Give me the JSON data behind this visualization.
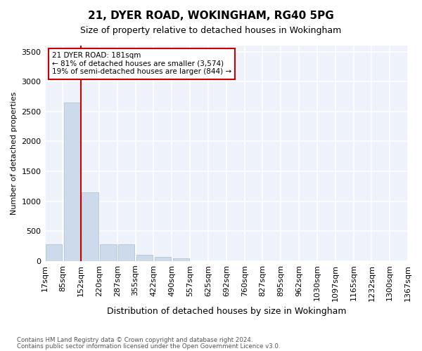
{
  "title": "21, DYER ROAD, WOKINGHAM, RG40 5PG",
  "subtitle": "Size of property relative to detached houses in Wokingham",
  "xlabel": "Distribution of detached houses by size in Wokingham",
  "ylabel": "Number of detached properties",
  "bar_color": "#ccdaeb",
  "bar_edgecolor": "#aabdce",
  "background_color": "#eef2fa",
  "grid_color": "#ffffff",
  "tick_labels": [
    "17sqm",
    "85sqm",
    "152sqm",
    "220sqm",
    "287sqm",
    "355sqm",
    "422sqm",
    "490sqm",
    "557sqm",
    "625sqm",
    "692sqm",
    "760sqm",
    "827sqm",
    "895sqm",
    "962sqm",
    "1030sqm",
    "1097sqm",
    "1165sqm",
    "1232sqm",
    "1300sqm",
    "1367sqm"
  ],
  "values": [
    280,
    2650,
    1150,
    280,
    275,
    100,
    65,
    40,
    0,
    0,
    0,
    0,
    0,
    0,
    0,
    0,
    0,
    0,
    0,
    0
  ],
  "ylim": [
    0,
    3600
  ],
  "yticks": [
    0,
    500,
    1000,
    1500,
    2000,
    2500,
    3000,
    3500
  ],
  "marker_label": "21 DYER ROAD: 181sqm",
  "annotation_line1": "← 81% of detached houses are smaller (3,574)",
  "annotation_line2": "19% of semi-detached houses are larger (844) →",
  "footer1": "Contains HM Land Registry data © Crown copyright and database right 2024.",
  "footer2": "Contains public sector information licensed under the Open Government Licence v3.0.",
  "red_color": "#cc0000",
  "annotation_box_edgecolor": "#cc0000"
}
